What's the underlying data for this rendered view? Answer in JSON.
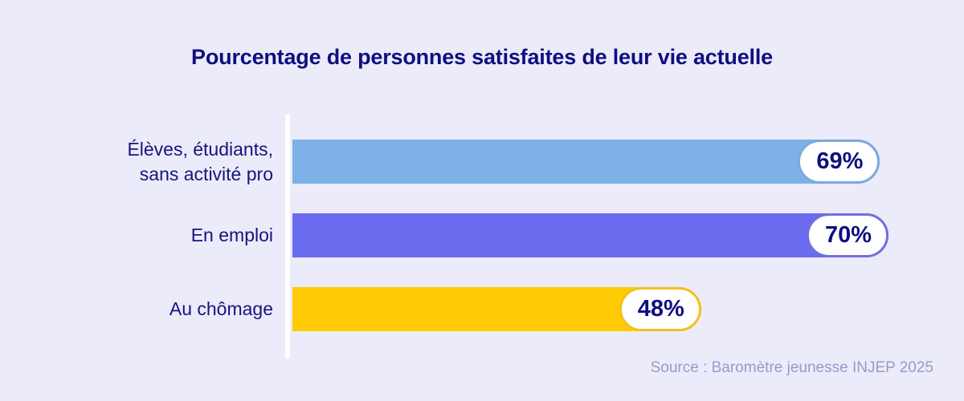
{
  "chart_data": {
    "type": "bar",
    "orientation": "horizontal",
    "title": "Pourcentage de personnes satisfaites de leur vie actuelle",
    "xlabel": "",
    "ylabel": "",
    "xlim": [
      0,
      100
    ],
    "grid": false,
    "categories": [
      "Élèves, étudiants, sans activité pro",
      "En emploi",
      "Au chômage"
    ],
    "category_lines": [
      [
        "Élèves, étudiants,",
        "sans activité pro"
      ],
      [
        "En emploi"
      ],
      [
        "Au chômage"
      ]
    ],
    "values": [
      69,
      70,
      48
    ],
    "value_labels": [
      "69%",
      "70%",
      "48%"
    ],
    "colors": [
      "#7DB1E8",
      "#6B6BF0",
      "#FFCB05"
    ],
    "pill_border_colors": [
      "#7AA9DE",
      "#7070E0",
      "#F2C21A"
    ],
    "source": "Source : Baromètre jeunesse INJEP 2025"
  },
  "theme": {
    "background": "#ECEBFA",
    "title_color": "#0F0F80",
    "label_color": "#15157A",
    "source_color": "#9A9AC8"
  }
}
